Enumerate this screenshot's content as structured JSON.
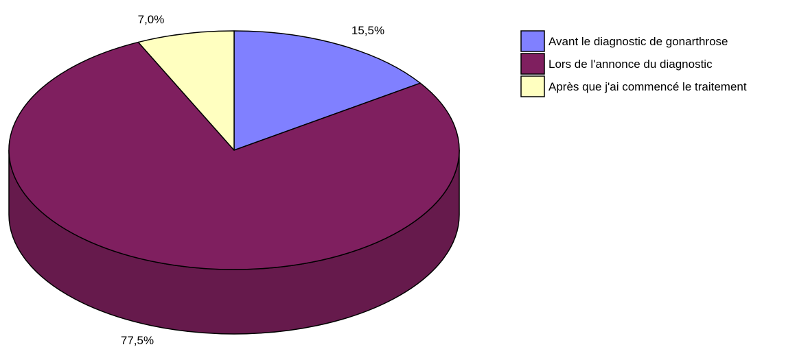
{
  "chart_data": {
    "type": "pie",
    "variant": "3d",
    "slices": [
      {
        "label": "Avant le diagnostic de gonarthrose",
        "value": 15.5,
        "value_label": "15,5%",
        "color": "#8080FF"
      },
      {
        "label": "Lors de l'annonce du diagnostic",
        "value": 77.5,
        "value_label": "77,5%",
        "color": "#7F1F5F"
      },
      {
        "label": "Après que j'ai commencé le traitement",
        "value": 7.0,
        "value_label": "7,0%",
        "color": "#FFFFC0"
      }
    ],
    "side_color": "#661A4C",
    "outline_color": "#000000",
    "start_angle": "12 o'clock",
    "direction": "clockwise",
    "legend": {
      "position": "top-right"
    }
  }
}
